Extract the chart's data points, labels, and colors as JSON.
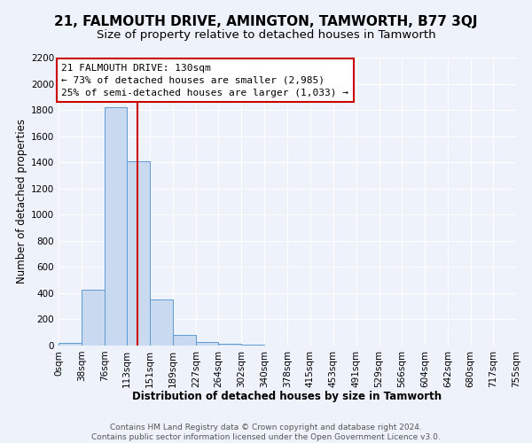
{
  "title": "21, FALMOUTH DRIVE, AMINGTON, TAMWORTH, B77 3QJ",
  "subtitle": "Size of property relative to detached houses in Tamworth",
  "xlabel": "Distribution of detached houses by size in Tamworth",
  "ylabel": "Number of detached properties",
  "bin_edges": [
    0,
    38,
    76,
    113,
    151,
    189,
    227,
    264,
    302,
    340,
    378,
    415,
    453,
    491,
    529,
    566,
    604,
    642,
    680,
    717,
    755
  ],
  "bin_counts": [
    20,
    425,
    1820,
    1410,
    350,
    80,
    30,
    15,
    8,
    3,
    2,
    1,
    1,
    1,
    1,
    1,
    1,
    1,
    1,
    1
  ],
  "bar_color": "#c9d9f0",
  "bar_edge_color": "#5b9bd5",
  "property_size": 130,
  "vline_color": "#cc0000",
  "annotation_line1": "21 FALMOUTH DRIVE: 130sqm",
  "annotation_line2": "← 73% of detached houses are smaller (2,985)",
  "annotation_line3": "25% of semi-detached houses are larger (1,033) →",
  "annotation_box_color": "#ffffff",
  "annotation_box_edge_color": "#cc0000",
  "ylim": [
    0,
    2200
  ],
  "yticks": [
    0,
    200,
    400,
    600,
    800,
    1000,
    1200,
    1400,
    1600,
    1800,
    2000,
    2200
  ],
  "tick_labels": [
    "0sqm",
    "38sqm",
    "76sqm",
    "113sqm",
    "151sqm",
    "189sqm",
    "227sqm",
    "264sqm",
    "302sqm",
    "340sqm",
    "378sqm",
    "415sqm",
    "453sqm",
    "491sqm",
    "529sqm",
    "566sqm",
    "604sqm",
    "642sqm",
    "680sqm",
    "717sqm",
    "755sqm"
  ],
  "footer_text": "Contains HM Land Registry data © Crown copyright and database right 2024.\nContains public sector information licensed under the Open Government Licence v3.0.",
  "background_color": "#eef2fa",
  "grid_color": "#ffffff",
  "title_fontsize": 11,
  "subtitle_fontsize": 9.5,
  "axis_label_fontsize": 8.5,
  "tick_fontsize": 7.5,
  "annotation_fontsize": 8,
  "footer_fontsize": 6.5
}
